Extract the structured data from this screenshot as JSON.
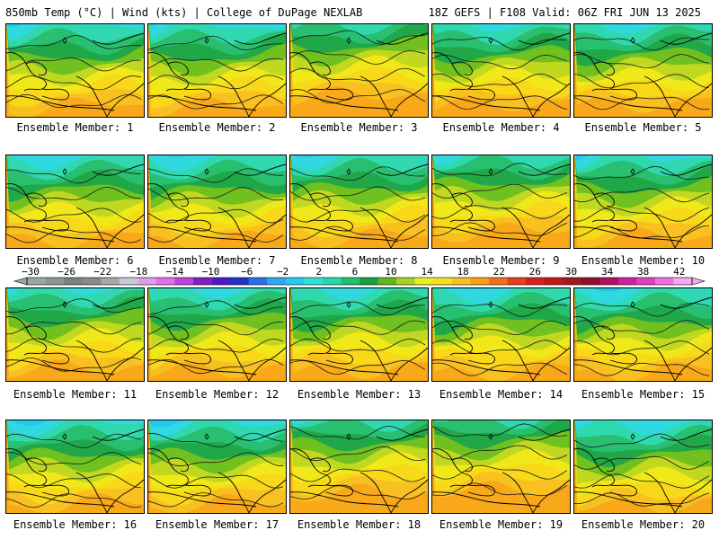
{
  "header": {
    "left_title": "850mb Temp (°C) | Wind (kts) | College of DuPage NEXLAB",
    "right_title": "18Z GEFS | F108 Valid: 06Z FRI JUN 13 2025"
  },
  "members": [
    {
      "label": "Ensemble Member: 1",
      "warm": 0.55
    },
    {
      "label": "Ensemble Member: 2",
      "warm": 0.55
    },
    {
      "label": "Ensemble Member: 3",
      "warm": 0.85
    },
    {
      "label": "Ensemble Member: 4",
      "warm": 0.6
    },
    {
      "label": "Ensemble Member: 5",
      "warm": 0.6
    },
    {
      "label": "Ensemble Member: 6",
      "warm": 0.5
    },
    {
      "label": "Ensemble Member: 7",
      "warm": 0.5
    },
    {
      "label": "Ensemble Member: 8",
      "warm": 0.55
    },
    {
      "label": "Ensemble Member: 9",
      "warm": 0.7
    },
    {
      "label": "Ensemble Member: 10",
      "warm": 0.55
    },
    {
      "label": "Ensemble Member: 11",
      "warm": 0.6
    },
    {
      "label": "Ensemble Member: 12",
      "warm": 0.55
    },
    {
      "label": "Ensemble Member: 13",
      "warm": 0.55
    },
    {
      "label": "Ensemble Member: 14",
      "warm": 0.5
    },
    {
      "label": "Ensemble Member: 15",
      "warm": 0.5
    },
    {
      "label": "Ensemble Member: 16",
      "warm": 0.5
    },
    {
      "label": "Ensemble Member: 17",
      "warm": 0.5
    },
    {
      "label": "Ensemble Member: 18",
      "warm": 0.8
    },
    {
      "label": "Ensemble Member: 19",
      "warm": 0.9
    },
    {
      "label": "Ensemble Member: 20",
      "warm": 0.45
    }
  ],
  "colorbar": {
    "labels": [
      "−30",
      "−26",
      "−22",
      "−18",
      "−14",
      "−10",
      "−6",
      "−2",
      "2",
      "6",
      "10",
      "14",
      "18",
      "22",
      "26",
      "30",
      "34",
      "38",
      "42"
    ],
    "colors": [
      "#9aa7a0",
      "#8a968f",
      "#7a827c",
      "#8a8a8a",
      "#a8a8a8",
      "#c8c8d8",
      "#d9a0e8",
      "#e070f0",
      "#c040e0",
      "#8020c0",
      "#5018c0",
      "#2030c8",
      "#2a70e8",
      "#30a8f0",
      "#28c8f0",
      "#30e0d8",
      "#28d8a8",
      "#20c070",
      "#18a040",
      "#60b820",
      "#a8d020",
      "#e8f020",
      "#f8e020",
      "#f8c020",
      "#f8a018",
      "#f07020",
      "#e84018",
      "#d82020",
      "#c01818",
      "#a01820",
      "#901030",
      "#b01060",
      "#d020a0",
      "#e040c0",
      "#f070e0",
      "#f8a8f0"
    ]
  }
}
